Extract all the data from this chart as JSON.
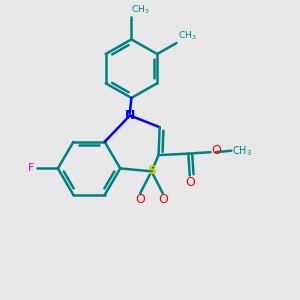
{
  "background_color": "#e8e8e8",
  "teal": "#008080",
  "blue": "#0000FF",
  "yellow": "#CCCC00",
  "red": "#FF0000",
  "magenta": "#CC00CC",
  "line_width": 1.8,
  "figsize": [
    3.0,
    3.0
  ],
  "dpi": 100,
  "xlim": [
    0,
    1
  ],
  "ylim": [
    0,
    1
  ]
}
